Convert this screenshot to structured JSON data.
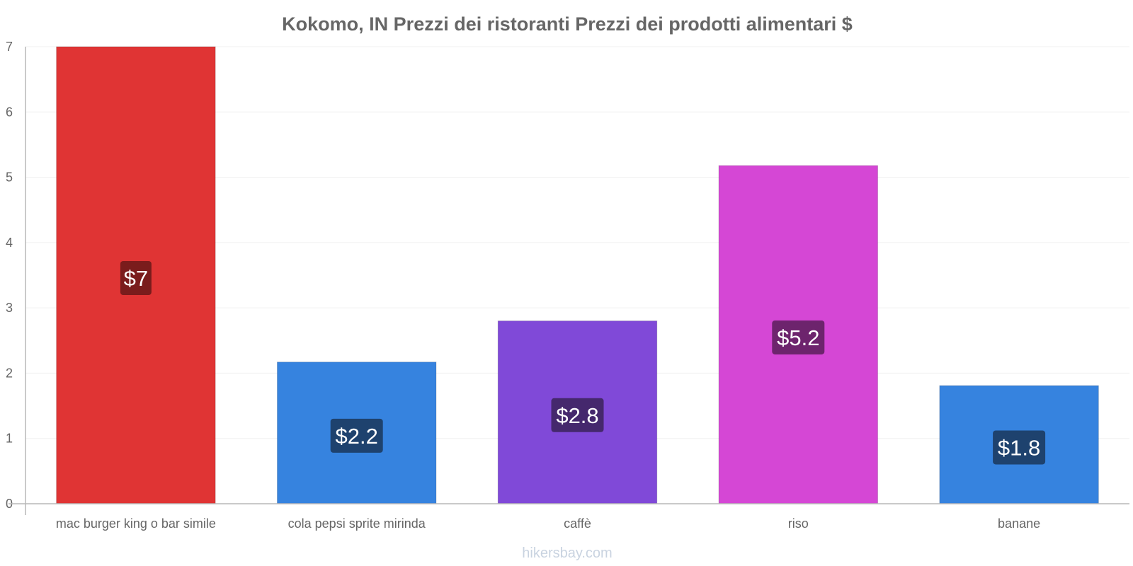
{
  "chart_data": {
    "type": "bar",
    "title": "Kokomo, IN Prezzi dei ristoranti Prezzi dei prodotti alimentari $",
    "categories": [
      "mac burger king o bar simile",
      "cola pepsi sprite mirinda",
      "caffè",
      "riso",
      "banane"
    ],
    "values": [
      7,
      2.17,
      2.8,
      5.18,
      1.81
    ],
    "value_labels": [
      "$7",
      "$2.2",
      "$2.8",
      "$5.2",
      "$1.8"
    ],
    "bar_colors": [
      "#e03434",
      "#3683df",
      "#8049d8",
      "#d547d5",
      "#3683df"
    ],
    "label_colors": [
      "#7a1c1c",
      "#1e426e",
      "#45286d",
      "#6d246d",
      "#1e426e"
    ],
    "xlabel": "",
    "ylabel": "",
    "ylim": [
      0,
      7
    ],
    "yticks": [
      0,
      1,
      2,
      3,
      4,
      5,
      6,
      7
    ],
    "grid": true
  },
  "watermark": "hikersbay.com"
}
